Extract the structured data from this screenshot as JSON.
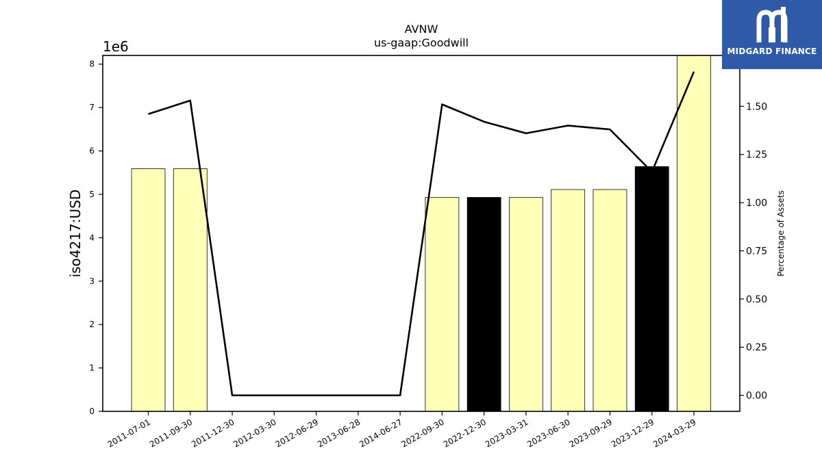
{
  "logo": {
    "text": "MIDGARD FINANCE",
    "icon": "midgard-m-icon",
    "color": "#2f5aa8"
  },
  "chart_data": {
    "type": "bar",
    "title": "AVNW",
    "subtitle": "us-gaap:Goodwill",
    "ylabel": "iso4217:USD",
    "y_multiplier_label": "1e6",
    "y2label": "Percentage of Assets",
    "categories": [
      "2011-07-01",
      "2011-09-30",
      "2011-12-30",
      "2012-03-30",
      "2012-06-29",
      "2013-06-28",
      "2014-06-27",
      "2022-09-30",
      "2022-12-30",
      "2023-03-31",
      "2023-06-30",
      "2023-09-29",
      "2023-12-29",
      "2024-03-29"
    ],
    "values": [
      5.59,
      5.59,
      0,
      0,
      0,
      0,
      0,
      4.93,
      4.93,
      4.93,
      5.11,
      5.11,
      5.64,
      8.3
    ],
    "bar_colors": [
      "#ffffb8",
      "#ffffb8",
      "#ffffb8",
      "#ffffb8",
      "#ffffb8",
      "#ffffb8",
      "#ffffb8",
      "#ffffb8",
      "#000000",
      "#ffffb8",
      "#ffffb8",
      "#ffffb8",
      "#000000",
      "#ffffb8"
    ],
    "line_values": [
      1.46,
      1.53,
      0.0,
      0.0,
      0.0,
      0.0,
      0.0,
      1.51,
      1.42,
      1.36,
      1.4,
      1.38,
      1.16,
      1.68
    ],
    "ylim": [
      0,
      8.2
    ],
    "y2lim": [
      -0.083,
      1.764
    ],
    "yticks": [
      0,
      1,
      2,
      3,
      4,
      5,
      6,
      7,
      8
    ],
    "y2ticks": [
      0.0,
      0.25,
      0.5,
      0.75,
      1.0,
      1.25,
      1.5
    ],
    "y2tick_labels": [
      "0.00",
      "0.25",
      "0.50",
      "0.75",
      "1.00",
      "1.25",
      "1.50"
    ],
    "grid": false,
    "legend": "none"
  }
}
